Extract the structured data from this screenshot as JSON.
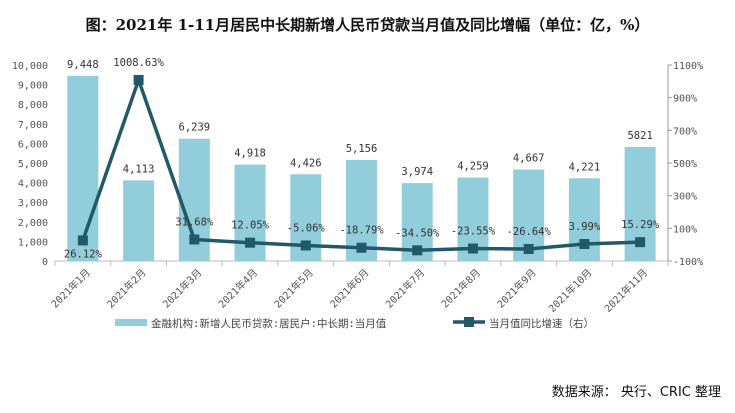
{
  "title": "图：2021年 1-11月居民中长期新增人民币贷款当月值及同比增幅（单位：亿，%）",
  "source": "数据来源： 央行、CRIC 整理",
  "chart_data": {
    "type": "bar+line",
    "categories": [
      "2021年1月",
      "2021年2月",
      "2021年3月",
      "2021年4月",
      "2021年5月",
      "2021年6月",
      "2021年7月",
      "2021年8月",
      "2021年9月",
      "2021年10月",
      "2021年11月"
    ],
    "series": [
      {
        "name": "金融机构:新增人民币贷款:居民户:中长期:当月值",
        "type": "bar",
        "axis": "left",
        "color": "#92CDDC",
        "values": [
          9448,
          4113,
          6239,
          4918,
          4426,
          5156,
          3974,
          4259,
          4667,
          4221,
          5821
        ],
        "labels": [
          "9,448",
          "4,113",
          "6,239",
          "4,918",
          "4,426",
          "5,156",
          "3,974",
          "4,259",
          "4,667",
          "4,221",
          "5821"
        ]
      },
      {
        "name": "当月值同比增速（右）",
        "type": "line",
        "axis": "right",
        "color": "#215968",
        "values": [
          26.12,
          1008.63,
          31.68,
          12.05,
          -5.06,
          -18.79,
          -34.5,
          -23.55,
          -26.64,
          3.99,
          15.29
        ],
        "labels": [
          "26.12%",
          "1008.63%",
          "31.68%",
          "12.05%",
          "-5.06%",
          "-18.79%",
          "-34.50%",
          "-23.55%",
          "-26.64%",
          "3.99%",
          "15.29%"
        ]
      }
    ],
    "left_axis": {
      "range": [
        0,
        10000
      ],
      "ticks": [
        "0",
        "1,000",
        "2,000",
        "3,000",
        "4,000",
        "5,000",
        "6,000",
        "7,000",
        "8,000",
        "9,000",
        "10,000"
      ]
    },
    "right_axis": {
      "range": [
        -100,
        1100
      ],
      "ticks": [
        "-100%",
        "100%",
        "300%",
        "500%",
        "700%",
        "900%",
        "1100%"
      ]
    },
    "grid": false,
    "legend": "bottom"
  }
}
